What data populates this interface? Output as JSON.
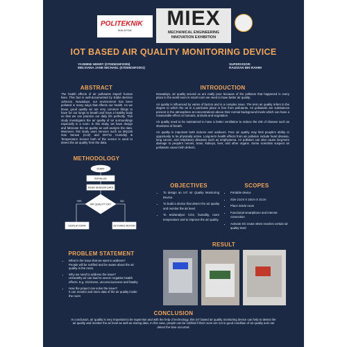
{
  "header": {
    "logos": {
      "left_top": "POLITEKNIK",
      "left_bottom": "MALAYSIA",
      "center": "MIEX",
      "center_line1": "MECHANICAL ENGINEERING",
      "center_line2": "INNOVATION EXHIBITION"
    },
    "title": "IOT BASED AIR QUALITY MONITORING DEVICE",
    "authors": [
      "YASMINE HENRY (07DEM19F2005)",
      "MELVIANA JANE MICHAEL (07DEM19F2001)"
    ],
    "supervisor_label": "SUPERVISOR:",
    "supervisor": "RAIZIZAN BIN RAHIM"
  },
  "abstract": {
    "heading": "ABSTRACT",
    "text": "The health effects of air pollutants imperil human lives. This fact is well-documented by Eddie Bernice Johnson. Nowadays, our environment has been polluted in many ways that effects our health. As we know, good quality air are very common things to have for our lungs to breath and have a healthy body so that we can practice our daily life perfectly. This study investigates the air quality of air surroundings especially in a room. In this study, we have design and fabricate the air quality as well analyze the data. Moreover, this study uses sensors such as MQ135 Gas Sensor (Co2) and DHT11 Humidity & Temperature Sensor both of the sensor is used to detect the air quality from the data."
  },
  "methodology": {
    "heading": "METHODOLOGY",
    "flowchart": {
      "nodes": [
        "START",
        "INITIALIZE",
        "READ SENSOR DATA",
        "AIR QUALITY OK?",
        "DISPLAY DATA",
        "ACTIVATE MOTOR",
        "YES",
        "NO"
      ]
    }
  },
  "introduction": {
    "heading": "INTRODUCTION",
    "paragraphs": [
      "Nowadays, air quality around us are really poor because of the pollution that happened in every place in the world even in small room we need to have better air quality.",
      "Air quality is influenced by varies of factors and is a complex issue. The term air quality refers to the degree to which the air in a particular place is free from pollutants. Air pollutants are substances present in the atmosphere at concentrations above their normal background levels which can have a measurable effect on humans, animals and vegetation.",
      "Air quality need to be maintained to have a better ventilation to reduce the risk of disease such as shortness of breath.",
      "Air quality is important both indoors and outdoors. Poor air quality may limit people's ability or opportunity to be physically active. Long-term health effects from air pollution include heart disease, lung cancer, and respiratory diseases such as emphysema. Air pollution can also cause long-term damage to people's nerves, brain, kidneys, liver, and other organs. Some scientists suspect air pollutants cause birth defects."
    ]
  },
  "objectives": {
    "heading": "OBJECTIVES",
    "items": [
      "To design an IoT Air Quality Monitoring Device.",
      "To build a device that detect the air quality and monitor the air level.",
      "To test/analyze CO2, humidity, room temperature and to improve the air quality."
    ]
  },
  "scopes": {
    "heading": "SCOPES",
    "items": [
      "Portable device",
      "Size 21cm X 10cm X 21cm",
      "Place inside room",
      "Functional smartphone and internet connection",
      "Activate DC motor when reaches certain air quality level"
    ]
  },
  "problem_statement": {
    "heading": "PROBLEM STATEMENT",
    "items": [
      {
        "question": "What is the issue that we want to address?",
        "answer": "People will be notified and be aware about the air quality in the room."
      },
      {
        "question": "Why we need to address the issue?",
        "answer": "Unhealthy air can lead to severe negative health effects. E.g. Dizziness, unconsciousness and fatality"
      },
      {
        "question": "How the project can solve the issue?",
        "answer": "It can monitor and store data of the air quality inside the room"
      }
    ]
  },
  "result": {
    "heading": "RESULT"
  },
  "conclusion": {
    "heading": "CONCLUSION",
    "text": "In conclusion, air quality is very important to be supervise and with the help of technology, this IoT based air quality monitoring device can help to detect the air quality and monitor the air level as well as storing data. In this case, people can be notified if their room are not in good condition of air quality and can detect the time occurred."
  }
}
